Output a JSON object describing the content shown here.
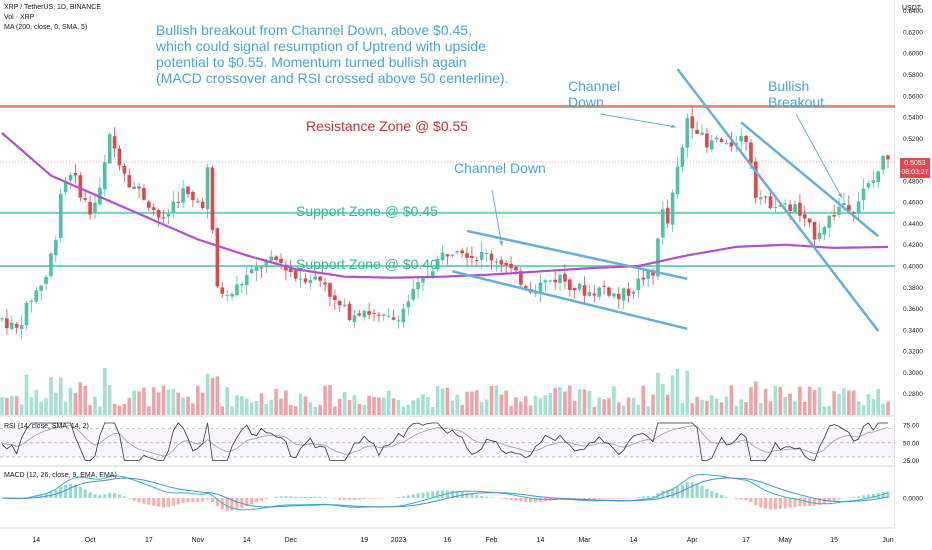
{
  "header": {
    "symbol_line": "XRP / TetherUS, 1D, BINANCE",
    "vol_line": "Vol · XRP",
    "ma_line": "MA (200, close, 0, SMA, 5)",
    "rsi_line": "RSI (14, close, SMA, 14, 2)",
    "macd_line": "MACD (12, 26, close, 9, EMA, EMA)",
    "price_axis_unit": "USDT"
  },
  "annotations": {
    "main_note": "Bullish breakout from Channel Down, above $0.45,\nwhich could signal resumption of Uptrend with upside\npotential to $0.55. Momentum turned bullish again\n(MACD crossover and RSI crossed above 50 centerline).",
    "resistance": "Resistance Zone @ $0.55",
    "support1": "Support Zone @ $0.45",
    "support2": "Support Zone @ $0.40",
    "channel_down_1": "Channel Down",
    "channel_down_2": "Channel\nDown",
    "bullish_breakout": "Bullish\nBreakout"
  },
  "price_label": {
    "price": "0.5053",
    "countdown": "08:03:27"
  },
  "colors": {
    "up": "#4cc3a6",
    "down": "#e2474d",
    "ma": "#b24fd1",
    "channel": "#67aed9",
    "resistance": "#e57373",
    "support": "#5dd0b0",
    "note": "#4aa3d6",
    "rsi": "#333333",
    "macd": "#2fb9b0",
    "signal": "#4a8fd6"
  },
  "chart_data": {
    "type": "candlestick",
    "ylim": [
      0.26,
      0.65
    ],
    "price_ticks": [
      "0.6400",
      "0.6200",
      "0.6000",
      "0.5800",
      "0.5600",
      "0.5400",
      "0.5200",
      "0.4800",
      "0.4600",
      "0.4400",
      "0.4200",
      "0.4000",
      "0.3800",
      "0.3600",
      "0.3400",
      "0.3200",
      "0.3000",
      "0.2800"
    ],
    "price_tick_values": [
      0.64,
      0.62,
      0.6,
      0.58,
      0.56,
      0.54,
      0.52,
      0.48,
      0.46,
      0.44,
      0.42,
      0.4,
      0.38,
      0.36,
      0.34,
      0.32,
      0.3,
      0.28
    ],
    "rsi_ticks": [
      "75.00",
      "50.00",
      "25.00"
    ],
    "rsi_tick_values": [
      75,
      50,
      25
    ],
    "macd_ticks": [
      "0.0000"
    ],
    "x_labels": [
      {
        "label": "14",
        "idx": 7
      },
      {
        "label": "Oct",
        "idx": 18
      },
      {
        "label": "17",
        "idx": 30
      },
      {
        "label": "Nov",
        "idx": 40
      },
      {
        "label": "14",
        "idx": 50
      },
      {
        "label": "Dec",
        "idx": 59
      },
      {
        "label": "19",
        "idx": 74
      },
      {
        "label": "2023",
        "idx": 81
      },
      {
        "label": "16",
        "idx": 91
      },
      {
        "label": "Feb",
        "idx": 100
      },
      {
        "label": "14",
        "idx": 110
      },
      {
        "label": "Mar",
        "idx": 119
      },
      {
        "label": "14",
        "idx": 129
      },
      {
        "label": "Apr",
        "idx": 141
      },
      {
        "label": "17",
        "idx": 152
      },
      {
        "label": "May",
        "idx": 160
      },
      {
        "label": "15",
        "idx": 170
      },
      {
        "label": "Jun",
        "idx": 181
      }
    ],
    "anchors": [
      [
        0,
        0.35
      ],
      [
        3,
        0.34
      ],
      [
        6,
        0.37
      ],
      [
        9,
        0.39
      ],
      [
        11,
        0.43
      ],
      [
        12,
        0.47
      ],
      [
        14,
        0.49
      ],
      [
        16,
        0.47
      ],
      [
        18,
        0.45
      ],
      [
        20,
        0.47
      ],
      [
        22,
        0.52
      ],
      [
        24,
        0.5
      ],
      [
        26,
        0.48
      ],
      [
        28,
        0.47
      ],
      [
        30,
        0.46
      ],
      [
        33,
        0.44
      ],
      [
        35,
        0.46
      ],
      [
        37,
        0.47
      ],
      [
        39,
        0.46
      ],
      [
        41,
        0.46
      ],
      [
        42,
        0.49
      ],
      [
        43,
        0.43
      ],
      [
        44,
        0.38
      ],
      [
        46,
        0.37
      ],
      [
        48,
        0.38
      ],
      [
        50,
        0.39
      ],
      [
        53,
        0.4
      ],
      [
        56,
        0.405
      ],
      [
        58,
        0.4
      ],
      [
        60,
        0.39
      ],
      [
        63,
        0.39
      ],
      [
        66,
        0.385
      ],
      [
        68,
        0.365
      ],
      [
        71,
        0.355
      ],
      [
        74,
        0.36
      ],
      [
        77,
        0.35
      ],
      [
        80,
        0.35
      ],
      [
        82,
        0.36
      ],
      [
        84,
        0.375
      ],
      [
        86,
        0.385
      ],
      [
        88,
        0.4
      ],
      [
        90,
        0.41
      ],
      [
        93,
        0.42
      ],
      [
        96,
        0.41
      ],
      [
        99,
        0.41
      ],
      [
        102,
        0.405
      ],
      [
        105,
        0.39
      ],
      [
        108,
        0.38
      ],
      [
        111,
        0.385
      ],
      [
        114,
        0.39
      ],
      [
        117,
        0.38
      ],
      [
        120,
        0.375
      ],
      [
        123,
        0.38
      ],
      [
        126,
        0.37
      ],
      [
        129,
        0.38
      ],
      [
        131,
        0.39
      ],
      [
        133,
        0.39
      ],
      [
        134,
        0.43
      ],
      [
        135,
        0.45
      ],
      [
        136,
        0.44
      ],
      [
        138,
        0.49
      ],
      [
        139,
        0.51
      ],
      [
        140,
        0.54
      ],
      [
        142,
        0.53
      ],
      [
        144,
        0.51
      ],
      [
        146,
        0.52
      ],
      [
        148,
        0.51
      ],
      [
        150,
        0.52
      ],
      [
        152,
        0.52
      ],
      [
        153,
        0.5
      ],
      [
        154,
        0.47
      ],
      [
        156,
        0.46
      ],
      [
        158,
        0.46
      ],
      [
        160,
        0.455
      ],
      [
        162,
        0.455
      ],
      [
        164,
        0.44
      ],
      [
        166,
        0.43
      ],
      [
        168,
        0.44
      ],
      [
        170,
        0.45
      ],
      [
        172,
        0.46
      ],
      [
        174,
        0.455
      ],
      [
        176,
        0.47
      ],
      [
        178,
        0.48
      ],
      [
        180,
        0.5
      ],
      [
        181,
        0.505
      ]
    ],
    "ma200_anchors": [
      [
        0,
        0.525
      ],
      [
        10,
        0.485
      ],
      [
        20,
        0.465
      ],
      [
        30,
        0.445
      ],
      [
        40,
        0.425
      ],
      [
        50,
        0.41
      ],
      [
        60,
        0.397
      ],
      [
        70,
        0.39
      ],
      [
        80,
        0.389
      ],
      [
        90,
        0.39
      ],
      [
        100,
        0.392
      ],
      [
        110,
        0.395
      ],
      [
        120,
        0.398
      ],
      [
        130,
        0.4
      ],
      [
        140,
        0.41
      ],
      [
        150,
        0.418
      ],
      [
        160,
        0.42
      ],
      [
        170,
        0.417
      ],
      [
        181,
        0.418
      ]
    ],
    "resistance_level": 0.55,
    "support_levels": [
      0.45,
      0.4
    ],
    "channels": [
      {
        "name": "Channel Down (Jan–Mar) upper",
        "x0": 95,
        "y0": 0.433,
        "x1": 140,
        "y1": 0.388
      },
      {
        "name": "Channel Down (Jan–Mar) lower",
        "x0": 92,
        "y0": 0.395,
        "x1": 140,
        "y1": 0.341
      },
      {
        "name": "Channel Down (Apr–May) upper",
        "x0": 151,
        "y0": 0.535,
        "x1": 179,
        "y1": 0.428
      },
      {
        "name": "Channel Down (Apr–May) lower",
        "x0": 138,
        "y0": 0.585,
        "x1": 179,
        "y1": 0.339
      }
    ]
  }
}
